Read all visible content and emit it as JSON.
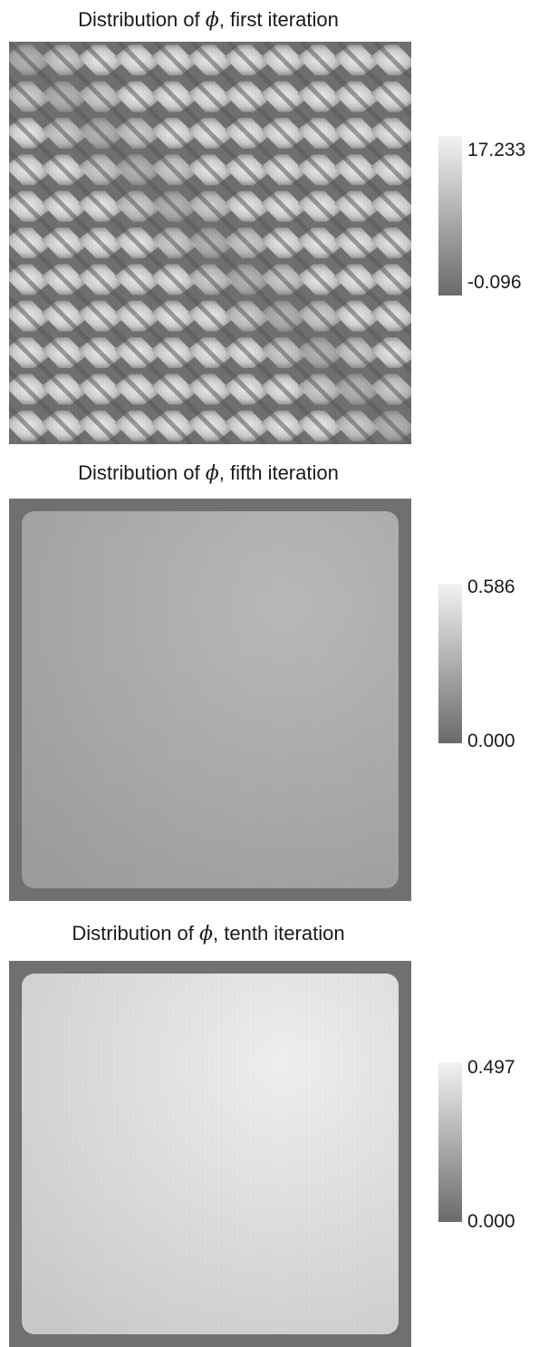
{
  "figure": {
    "panels": [
      {
        "title_prefix": "Distribution of ",
        "symbol": "ϕ",
        "title_suffix": ", first iteration",
        "colorbar": {
          "max_label": "17.233",
          "min_label": "-0.096"
        }
      },
      {
        "title_prefix": "Distribution of ",
        "symbol": "ϕ",
        "title_suffix": ", fifth iteration",
        "colorbar": {
          "max_label": "0.586",
          "min_label": "0.000"
        }
      },
      {
        "title_prefix": "Distribution of ",
        "symbol": "ϕ",
        "title_suffix": ", tenth iteration",
        "colorbar": {
          "max_label": "0.497",
          "min_label": "0.000"
        }
      }
    ]
  },
  "chart_data": [
    {
      "type": "heatmap",
      "title": "Distribution of ϕ, first iteration",
      "colormap": "grayscale",
      "colorbar_range": [
        -0.096,
        17.233
      ],
      "pattern": "diagonal bands of bright diamond-shaped cells, 11 x 11 checkerboard"
    },
    {
      "type": "heatmap",
      "title": "Distribution of ϕ, fifth iteration",
      "colormap": "grayscale",
      "colorbar_range": [
        0.0,
        0.586
      ],
      "pattern": "nearly uniform field, slightly brighter toward upper-right, darker at edges"
    },
    {
      "type": "heatmap",
      "title": "Distribution of ϕ, tenth iteration",
      "colormap": "grayscale",
      "colorbar_range": [
        0.0,
        0.497
      ],
      "pattern": "nearly uniform bright field, brightest toward upper-right, dark border"
    }
  ],
  "colors": {
    "colorbar_low": "#6a6a6a",
    "colorbar_high": "#f2f2f2"
  }
}
